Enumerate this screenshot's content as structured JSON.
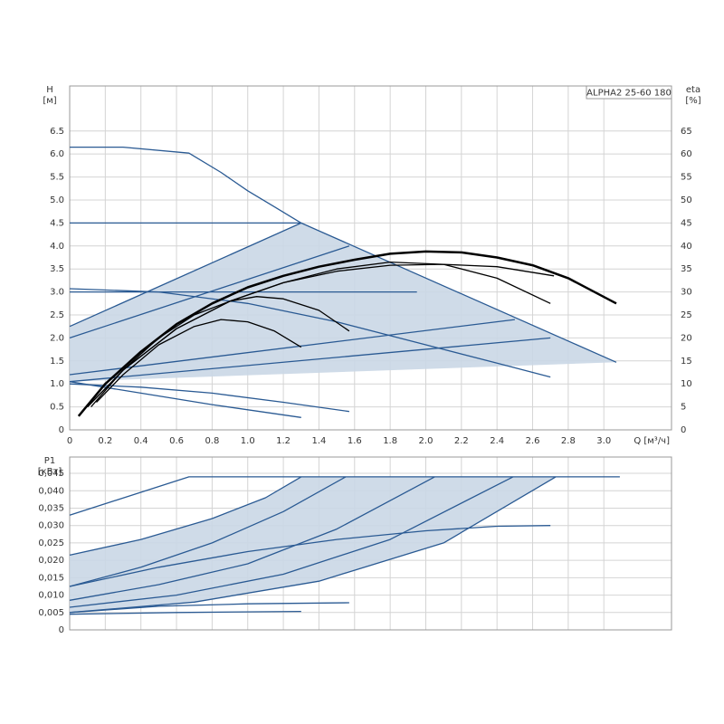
{
  "chart_data": [
    {
      "type": "line",
      "y_label": "H",
      "y_unit": "[м]",
      "y2_label": "eta",
      "y2_unit": "[%]",
      "x_label": "Q [м³/ч]",
      "annotation": "ALPHA2 25-60 180",
      "xlim": [
        0,
        3.38
      ],
      "xticks": [
        0,
        0.2,
        0.4,
        0.6,
        0.8,
        {
          "value": 1,
          "label": "1.0"
        },
        1.2,
        1.4,
        1.6,
        1.8,
        {
          "value": 2,
          "label": "2.0"
        },
        2.2,
        2.4,
        2.6,
        2.8,
        {
          "value": 3,
          "label": "3.0"
        }
      ],
      "ylim": [
        0,
        7.48
      ],
      "yticks": [
        0,
        0.5,
        {
          "value": 1,
          "label": "1.0"
        },
        1.5,
        {
          "value": 2,
          "label": "2.0"
        },
        2.5,
        {
          "value": 3,
          "label": "3.0"
        },
        3.5,
        {
          "value": 4,
          "label": "4.0"
        },
        4.5,
        {
          "value": 5,
          "label": "5.0"
        },
        5.5,
        {
          "value": 6,
          "label": "6.0"
        },
        6.5
      ],
      "y2lim": [
        0,
        74.8
      ],
      "y2ticks": [
        0,
        5,
        10,
        15,
        20,
        25,
        30,
        35,
        40,
        45,
        50,
        55,
        60,
        65
      ],
      "grid": true,
      "series": [
        {
          "area": true,
          "color": "#cad7e6",
          "x": [
            0,
            1.3,
            3.07,
            0
          ],
          "values": [
            2.25,
            4.5,
            1.47,
            1.05
          ]
        },
        {
          "color": "#2a5a93",
          "x": [
            0,
            0.3,
            0.67,
            0.85,
            1.0,
            1.15,
            1.3,
            3.07
          ],
          "values": [
            6.15,
            6.15,
            6.02,
            5.6,
            5.2,
            4.85,
            4.5,
            1.47
          ]
        },
        {
          "color": "#2a5a93",
          "x": [
            0,
            1.3
          ],
          "values": [
            4.5,
            4.5
          ]
        },
        {
          "color": "#2a5a93",
          "x": [
            0,
            1.3
          ],
          "values": [
            2.25,
            4.5
          ]
        },
        {
          "color": "#2a5a93",
          "x": [
            0,
            1.57
          ],
          "values": [
            2.0,
            4.0
          ]
        },
        {
          "color": "#2a5a93",
          "x": [
            0,
            2.5
          ],
          "values": [
            1.2,
            2.4
          ]
        },
        {
          "color": "#2a5a93",
          "x": [
            0,
            2.7
          ],
          "values": [
            1.05,
            2.0
          ]
        },
        {
          "color": "#2a5a93",
          "x": [
            0,
            1.95
          ],
          "values": [
            3.0,
            3.0
          ]
        },
        {
          "color": "#2a5a93",
          "x": [
            0,
            0.5,
            1.0,
            1.5,
            2.0,
            2.4,
            2.7
          ],
          "values": [
            3.07,
            3.0,
            2.75,
            2.35,
            1.85,
            1.45,
            1.15
          ]
        },
        {
          "color": "#2a5a93",
          "x": [
            0,
            0.4,
            0.8,
            1.2,
            1.57
          ],
          "values": [
            1.0,
            0.93,
            0.8,
            0.6,
            0.4
          ]
        },
        {
          "color": "#2a5a93",
          "x": [
            0,
            0.4,
            0.8,
            1.3
          ],
          "values": [
            1.05,
            0.8,
            0.55,
            0.27
          ]
        },
        {
          "axis": "y2",
          "color": "#000000",
          "width": 2.5,
          "x": [
            0.05,
            0.2,
            0.4,
            0.6,
            0.8,
            1.0,
            1.2,
            1.4,
            1.6,
            1.8,
            2.0,
            2.2,
            2.4,
            2.6,
            2.8,
            3.07
          ],
          "values": [
            3,
            10,
            17,
            23,
            27.5,
            31,
            33.5,
            35.5,
            37,
            38.3,
            38.8,
            38.6,
            37.5,
            35.8,
            33,
            27.5
          ]
        },
        {
          "axis": "y2",
          "color": "#000000",
          "x": [
            0.1,
            0.3,
            0.6,
            0.9,
            1.2,
            1.5,
            1.8,
            2.1,
            2.4,
            2.72
          ],
          "values": [
            5,
            13,
            22,
            28,
            32,
            34.5,
            35.8,
            36,
            35.5,
            33.5
          ]
        },
        {
          "axis": "y2",
          "color": "#000000",
          "x": [
            0.1,
            0.3,
            0.6,
            0.9,
            1.2,
            1.5,
            1.8,
            2.1,
            2.4,
            2.7
          ],
          "values": [
            5,
            13,
            22,
            28,
            32,
            35,
            36.5,
            36,
            33,
            27.5
          ]
        },
        {
          "axis": "y2",
          "color": "#000000",
          "x": [
            0.12,
            0.3,
            0.5,
            0.7,
            0.9,
            1.05,
            1.2,
            1.4,
            1.57
          ],
          "values": [
            5,
            13,
            20,
            25,
            28,
            29,
            28.5,
            26,
            21.5
          ]
        },
        {
          "axis": "y2",
          "color": "#000000",
          "x": [
            0.15,
            0.3,
            0.5,
            0.7,
            0.85,
            1.0,
            1.15,
            1.3
          ],
          "values": [
            6,
            12,
            18.5,
            22.5,
            24,
            23.5,
            21.5,
            18
          ]
        }
      ]
    },
    {
      "type": "line",
      "y_label": "P1",
      "y_unit": "[кВт]",
      "xlim": [
        0,
        3.38
      ],
      "ylim": [
        0,
        0.0497
      ],
      "yticks": [
        0,
        {
          "value": 0.005,
          "label": "0,005"
        },
        {
          "value": 0.01,
          "label": "0,010"
        },
        {
          "value": 0.015,
          "label": "0,015"
        },
        {
          "value": 0.02,
          "label": "0,020"
        },
        {
          "value": 0.025,
          "label": "0,025"
        },
        {
          "value": 0.03,
          "label": "0,030"
        },
        {
          "value": 0.035,
          "label": "0,035"
        },
        {
          "value": 0.04,
          "label": "0,040"
        },
        {
          "value": 0.045,
          "label": "0,045"
        }
      ],
      "grid": true,
      "series": [
        {
          "area": true,
          "color": "#cad7e6",
          "x": [
            0,
            0.4,
            0.8,
            1.1,
            1.3,
            2.73,
            2.1,
            1.4,
            0.7,
            0
          ],
          "values": [
            0.0215,
            0.026,
            0.032,
            0.038,
            0.044,
            0.044,
            0.025,
            0.014,
            0.008,
            0.005
          ]
        },
        {
          "color": "#2a5a93",
          "x": [
            0,
            0.67,
            3.09
          ],
          "values": [
            0.033,
            0.044,
            0.044
          ]
        },
        {
          "color": "#2a5a93",
          "x": [
            0,
            0.4,
            0.8,
            1.1,
            1.3
          ],
          "values": [
            0.0215,
            0.026,
            0.032,
            0.038,
            0.044
          ]
        },
        {
          "color": "#2a5a93",
          "x": [
            0,
            0.4,
            0.8,
            1.2,
            1.55
          ],
          "values": [
            0.0125,
            0.018,
            0.025,
            0.034,
            0.044
          ]
        },
        {
          "color": "#2a5a93",
          "x": [
            0,
            0.5,
            1.0,
            1.5,
            2.05
          ],
          "values": [
            0.0085,
            0.013,
            0.019,
            0.029,
            0.044
          ]
        },
        {
          "color": "#2a5a93",
          "x": [
            0,
            0.6,
            1.2,
            1.8,
            2.49
          ],
          "values": [
            0.0065,
            0.01,
            0.016,
            0.026,
            0.044
          ]
        },
        {
          "color": "#2a5a93",
          "x": [
            0,
            0.7,
            1.4,
            2.1,
            2.73
          ],
          "values": [
            0.005,
            0.008,
            0.014,
            0.025,
            0.044
          ]
        },
        {
          "color": "#2a5a93",
          "x": [
            0,
            0.5,
            1.0,
            1.5,
            2.0,
            2.4,
            2.7
          ],
          "values": [
            0.0125,
            0.018,
            0.0225,
            0.026,
            0.0285,
            0.0298,
            0.03
          ]
        },
        {
          "color": "#2a5a93",
          "x": [
            0,
            0.5,
            1.0,
            1.57
          ],
          "values": [
            0.005,
            0.0068,
            0.0075,
            0.0078
          ]
        },
        {
          "color": "#2a5a93",
          "x": [
            0,
            0.6,
            1.3
          ],
          "values": [
            0.0045,
            0.005,
            0.0053
          ]
        }
      ]
    }
  ]
}
